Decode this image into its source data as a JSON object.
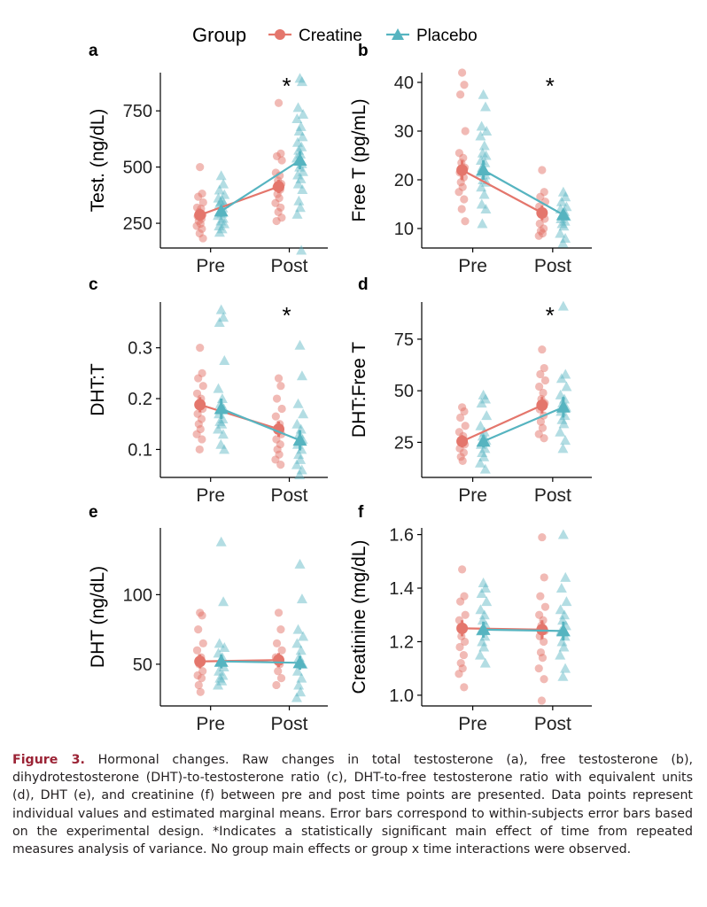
{
  "legend": {
    "title": "Group",
    "items": [
      {
        "label": "Creatine",
        "color": "#e4766c",
        "marker": "circle"
      },
      {
        "label": "Placebo",
        "color": "#56b4c0",
        "marker": "triangle"
      }
    ]
  },
  "colors": {
    "creatine": "#e4766c",
    "placebo": "#56b4c0",
    "axis": "#000000"
  },
  "chart_data": [
    {
      "panel": "a",
      "type": "scatter",
      "ylabel": "Test. (ng/dL)",
      "categories": [
        "Pre",
        "Post"
      ],
      "ylim": [
        140,
        920
      ],
      "yticks": [
        250,
        500,
        750
      ],
      "significance": {
        "Post": "*"
      },
      "series": [
        {
          "name": "Creatine",
          "means": [
            287,
            413
          ],
          "errors": [
            25,
            30
          ],
          "points": [
            [
              500,
              382,
              368,
              343,
              320,
              315,
              300,
              288,
              282,
              270,
              260,
              248,
              238,
              225,
              205,
              183
            ],
            [
              785,
              560,
              548,
              530,
              475,
              462,
              440,
              425,
              410,
              400,
              380,
              362,
              340,
              320,
              300,
              275,
              260
            ]
          ]
        },
        {
          "name": "Placebo",
          "means": [
            304,
            530
          ],
          "errors": [
            25,
            40
          ],
          "points": [
            [
              462,
              425,
              398,
              378,
              362,
              352,
              345,
              338,
              330,
              318,
              305,
              295,
              285,
              272,
              260,
              248,
              238,
              225,
              210
            ],
            [
              895,
              880,
              765,
              735,
              715,
              680,
              660,
              635,
              610,
              590,
              575,
              558,
              540,
              515,
              500,
              480,
              465,
              448,
              425,
              400,
              350,
              320,
              290,
              130
            ]
          ]
        }
      ]
    },
    {
      "panel": "b",
      "type": "scatter",
      "ylabel": "Free T (pg/mL)",
      "categories": [
        "Pre",
        "Post"
      ],
      "ylim": [
        6,
        42
      ],
      "yticks": [
        10,
        20,
        30,
        40
      ],
      "significance": {
        "Post": "*"
      },
      "series": [
        {
          "name": "Creatine",
          "means": [
            22,
            13.2
          ],
          "errors": [
            2,
            1.5
          ],
          "points": [
            [
              42,
              39.5,
              37.5,
              30,
              25.5,
              24.5,
              23.5,
              22.5,
              21.5,
              20.5,
              19.5,
              18.5,
              17.5,
              16,
              14,
              11.5
            ],
            [
              22,
              17.5,
              16.5,
              15.5,
              14.5,
              13.5,
              12.8,
              12,
              11,
              10,
              9.5,
              9,
              8.5
            ]
          ]
        },
        {
          "name": "Placebo",
          "means": [
            22,
            12.8
          ],
          "errors": [
            2,
            1
          ]
        },
        {
          "name": "Placebo points",
          "points": [
            [
              37.5,
              35,
              31,
              30,
              29,
              27,
              25.5,
              25,
              24,
              23.5,
              22.5,
              22,
              21.5,
              21,
              20,
              19.5,
              18.5,
              17,
              15,
              14,
              11
            ],
            [
              17.5,
              16.5,
              15.5,
              14.5,
              14,
              13.5,
              13,
              12.5,
              12,
              11.5,
              11,
              10.5,
              9,
              8,
              7
            ]
          ]
        }
      ]
    },
    {
      "panel": "c",
      "type": "scatter",
      "ylabel": "DHT:T",
      "categories": [
        "Pre",
        "Post"
      ],
      "ylim": [
        0.045,
        0.39
      ],
      "yticks": [
        0.1,
        0.2,
        0.3
      ],
      "significance": {
        "Post": "*"
      },
      "series": [
        {
          "name": "Creatine",
          "means": [
            0.188,
            0.14
          ],
          "errors": [
            0.015,
            0.015
          ],
          "points": [
            [
              0.3,
              0.25,
              0.24,
              0.225,
              0.21,
              0.2,
              0.19,
              0.18,
              0.17,
              0.16,
              0.15,
              0.14,
              0.13,
              0.12,
              0.1
            ],
            [
              0.24,
              0.225,
              0.2,
              0.18,
              0.165,
              0.15,
              0.14,
              0.13,
              0.12,
              0.11,
              0.1,
              0.09,
              0.08,
              0.07
            ]
          ]
        },
        {
          "name": "Placebo",
          "means": [
            0.18,
            0.118
          ],
          "errors": [
            0.02,
            0.02
          ],
          "points": [
            [
              0.375,
              0.36,
              0.35,
              0.275,
              0.22,
              0.2,
              0.19,
              0.18,
              0.17,
              0.16,
              0.155,
              0.15,
              0.14,
              0.13,
              0.11,
              0.1
            ],
            [
              0.305,
              0.245,
              0.19,
              0.17,
              0.15,
              0.14,
              0.13,
              0.12,
              0.11,
              0.1,
              0.09,
              0.08,
              0.07,
              0.06,
              0.05
            ]
          ]
        }
      ]
    },
    {
      "panel": "d",
      "type": "scatter",
      "ylabel": "DHT:Free T",
      "categories": [
        "Pre",
        "Post"
      ],
      "ylim": [
        8,
        93
      ],
      "yticks": [
        25,
        50,
        75
      ],
      "significance": {
        "Post": "*"
      },
      "series": [
        {
          "name": "Creatine",
          "means": [
            25.5,
            43
          ],
          "errors": [
            3,
            4
          ],
          "points": [
            [
              42,
              40,
              37,
              33,
              30,
              28,
              26,
              24,
              22,
              20,
              18,
              16
            ],
            [
              70,
              61,
              58,
              55,
              52,
              49,
              46,
              44,
              41,
              38,
              35,
              32,
              29,
              27
            ]
          ]
        },
        {
          "name": "Placebo",
          "means": [
            25.5,
            42
          ],
          "errors": [
            3,
            5
          ],
          "points": [
            [
              48,
              46,
              44,
              38,
              33,
              30,
              28,
              26,
              24,
              22,
              20,
              18,
              15,
              12
            ],
            [
              91,
              58,
              56,
              52,
              48,
              46,
              44,
              42,
              40,
              38,
              36,
              34,
              30,
              26,
              22
            ]
          ]
        }
      ]
    },
    {
      "panel": "e",
      "type": "scatter",
      "ylabel": "DHT (ng/dL)",
      "categories": [
        "Pre",
        "Post"
      ],
      "ylim": [
        20,
        148
      ],
      "yticks": [
        50,
        100
      ],
      "significance": {},
      "series": [
        {
          "name": "Creatine",
          "means": [
            52,
            53
          ],
          "errors": [
            5,
            5
          ],
          "points": [
            [
              87,
              85,
              75,
              65,
              60,
              55,
              50,
              45,
              42,
              40,
              35,
              30
            ],
            [
              87,
              75,
              65,
              60,
              55,
              50,
              45,
              40,
              35
            ]
          ]
        },
        {
          "name": "Placebo",
          "means": [
            52,
            51
          ],
          "errors": [
            5,
            5
          ],
          "points": [
            [
              138,
              95,
              65,
              62,
              58,
              55,
              52,
              48,
              45,
              42,
              40,
              38,
              35
            ],
            [
              122,
              97,
              75,
              70,
              65,
              60,
              55,
              50,
              45,
              40,
              35,
              30,
              26
            ]
          ]
        }
      ]
    },
    {
      "panel": "f",
      "type": "scatter",
      "ylabel": "Creatinine (mg/dL)",
      "categories": [
        "Pre",
        "Post"
      ],
      "ylim": [
        0.96,
        1.625
      ],
      "yticks": [
        1.0,
        1.2,
        1.4,
        1.6
      ],
      "significance": {},
      "series": [
        {
          "name": "Creatine",
          "means": [
            1.25,
            1.245
          ],
          "errors": [
            0.03,
            0.035
          ],
          "points": [
            [
              1.47,
              1.37,
              1.35,
              1.3,
              1.28,
              1.25,
              1.22,
              1.2,
              1.18,
              1.15,
              1.12,
              1.1,
              1.08,
              1.03
            ],
            [
              1.59,
              1.44,
              1.37,
              1.33,
              1.3,
              1.28,
              1.26,
              1.24,
              1.22,
              1.2,
              1.16,
              1.14,
              1.1,
              1.06,
              0.98
            ]
          ]
        },
        {
          "name": "Placebo",
          "means": [
            1.245,
            1.24
          ],
          "errors": [
            0.03,
            0.035
          ],
          "points": [
            [
              1.42,
              1.4,
              1.38,
              1.35,
              1.32,
              1.3,
              1.28,
              1.26,
              1.24,
              1.22,
              1.2,
              1.18,
              1.15,
              1.12
            ],
            [
              1.6,
              1.44,
              1.4,
              1.35,
              1.32,
              1.3,
              1.28,
              1.26,
              1.24,
              1.22,
              1.2,
              1.18,
              1.15,
              1.1,
              1.07
            ]
          ]
        }
      ]
    }
  ],
  "caption": {
    "label": "Figure 3.",
    "text": "Hormonal changes. Raw changes in total testosterone (a), free testosterone (b), dihydrotestosterone (DHT)-to-testosterone ratio (c), DHT-to-free testosterone ratio with equivalent units (d), DHT (e), and creatinine (f) between pre and post time points are presented. Data points represent individual values and estimated marginal means. Error bars correspond to within-subjects error bars based on the experimental design. *Indicates a statistically significant main effect of time from repeated measures analysis of variance. No group main effects or group x time interactions were observed."
  }
}
